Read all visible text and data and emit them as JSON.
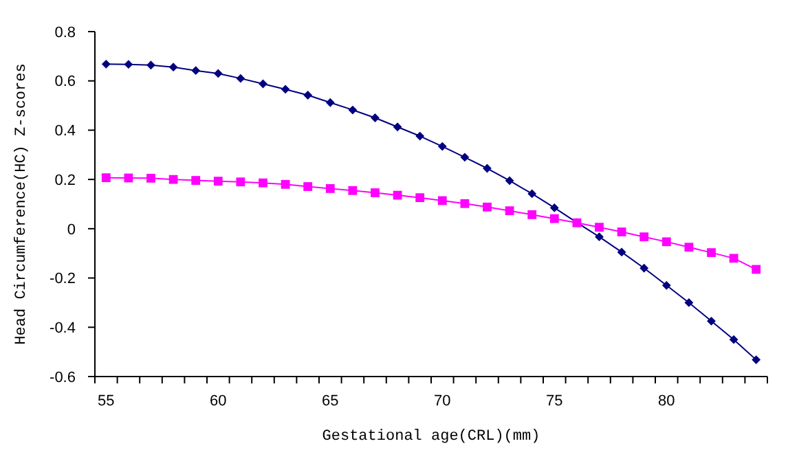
{
  "chart_data": {
    "type": "line",
    "xlabel": "Gestational age(CRL)(mm)",
    "ylabel": "Head Circumference(HC) Z-scores",
    "categories": [
      "55",
      null,
      null,
      null,
      null,
      "60",
      null,
      null,
      null,
      null,
      "65",
      null,
      null,
      null,
      null,
      "70",
      null,
      null,
      null,
      null,
      "75",
      null,
      null,
      null,
      null,
      "80",
      null,
      null,
      null,
      null
    ],
    "ylim": [
      -0.6,
      0.8
    ],
    "yticks": [
      {
        "value": -0.6,
        "label": "-0.6"
      },
      {
        "value": -0.4,
        "label": "-0.4"
      },
      {
        "value": -0.2,
        "label": "-0.2"
      },
      0,
      0.2,
      0.4,
      0.6,
      0.8
    ],
    "grid": false,
    "series": [
      {
        "color": "#000080",
        "marker": "diamond",
        "values": [
          0.668,
          0.667,
          0.664,
          0.656,
          0.642,
          0.63,
          0.61,
          0.588,
          0.566,
          0.542,
          0.512,
          0.482,
          0.45,
          0.413,
          0.376,
          0.334,
          0.29,
          0.245,
          0.195,
          0.142,
          0.085,
          0.025,
          -0.033,
          -0.095,
          -0.16,
          -0.23,
          -0.3,
          -0.375,
          -0.45,
          -0.532
        ]
      },
      {
        "color": "#ff00ff",
        "marker": "square",
        "values": [
          0.207,
          0.206,
          0.205,
          0.2,
          0.196,
          0.193,
          0.19,
          0.186,
          0.18,
          0.171,
          0.163,
          0.155,
          0.146,
          0.136,
          0.126,
          0.114,
          0.102,
          0.088,
          0.073,
          0.057,
          0.041,
          0.024,
          0.006,
          -0.013,
          -0.033,
          -0.053,
          -0.075,
          -0.097,
          -0.12,
          -0.165
        ]
      }
    ]
  }
}
